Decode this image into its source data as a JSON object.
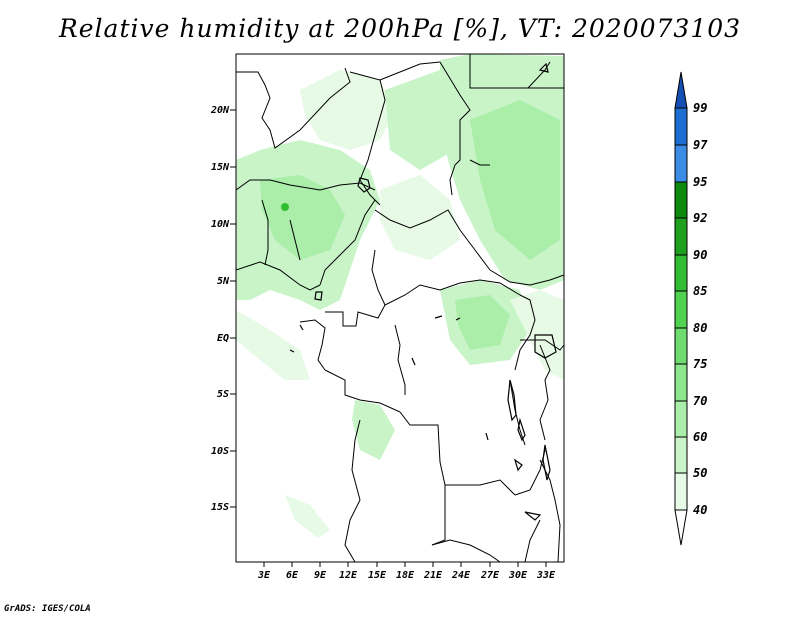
{
  "title": "Relative humidity at 200hPa [%], VT: 2020073103",
  "footer": "GrADS: IGES/COLA",
  "lat_labels": [
    "20N",
    "15N",
    "10N",
    "5N",
    "EQ",
    "5S",
    "10S",
    "15S"
  ],
  "lon_labels": [
    "3E",
    "6E",
    "9E",
    "12E",
    "15E",
    "18E",
    "21E",
    "24E",
    "27E",
    "30E",
    "33E"
  ],
  "colorbar": {
    "levels": [
      "99",
      "97",
      "95",
      "92",
      "90",
      "85",
      "80",
      "75",
      "70",
      "60",
      "50",
      "40"
    ],
    "colors": [
      "#ffffff",
      "#e6fae6",
      "#c8f4c8",
      "#aaeeaa",
      "#8ce68c",
      "#6edc6e",
      "#50d250",
      "#32be32",
      "#1ea01e",
      "#0e8a0e",
      "#3c8ce6",
      "#1e6ed2",
      "#1450b4"
    ]
  }
}
